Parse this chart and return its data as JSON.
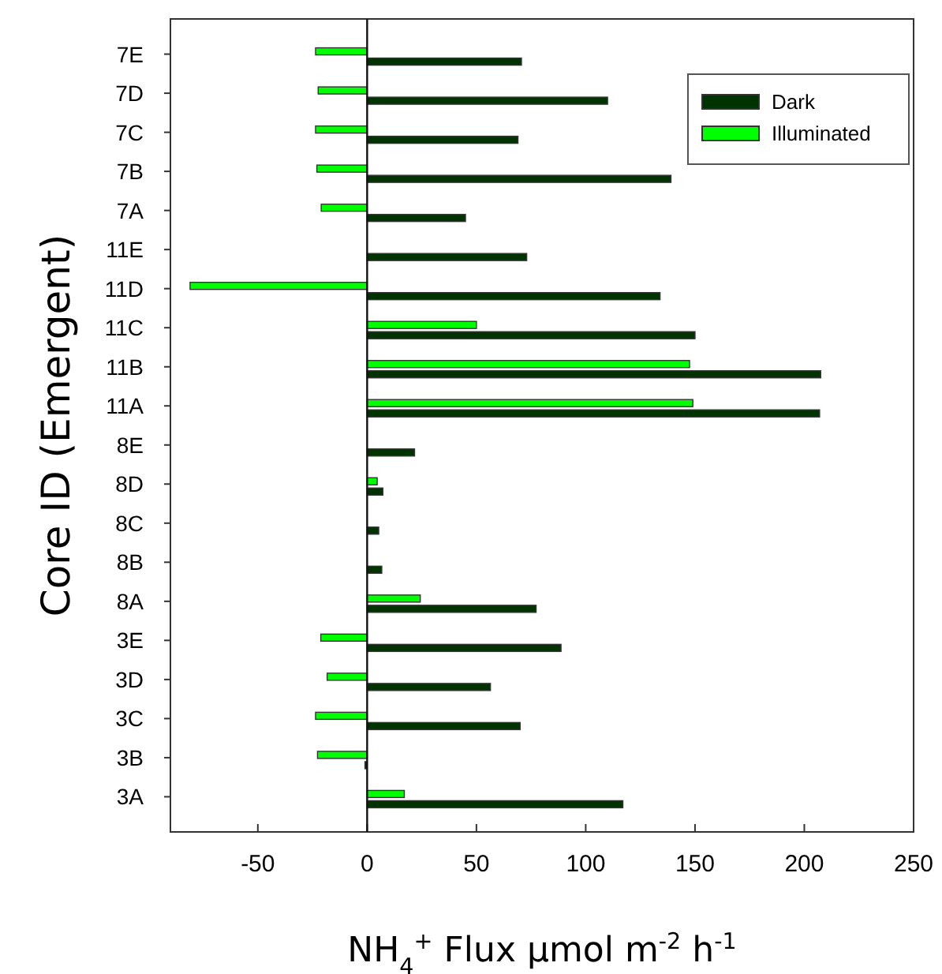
{
  "chart_data": {
    "type": "bar",
    "orientation": "horizontal",
    "xlabel": "NH$_{4}$$^{+}$ Flux  μmol m$^{-2}$ h$^{-1}$",
    "ylabel": "Core ID  (Emergent)",
    "categories": [
      "7E",
      "7D",
      "7C",
      "7B",
      "7A",
      "11E",
      "11D",
      "11C",
      "11B",
      "11A",
      "8E",
      "8D",
      "8C",
      "8B",
      "8A",
      "3E",
      "3D",
      "3C",
      "3B",
      "3A"
    ],
    "series": [
      {
        "name": "Dark",
        "color": "#003300",
        "values": [
          70.6,
          110,
          69,
          139,
          45,
          73,
          134,
          150,
          207.5,
          207,
          21.7,
          7.2,
          5.3,
          6.7,
          77.3,
          88.7,
          56.4,
          70,
          -1,
          117
        ]
      },
      {
        "name": "Illuminated",
        "color": "#00ff00",
        "values": [
          -23.6,
          -22.4,
          -23.6,
          -23,
          -21,
          null,
          -81,
          50,
          147.5,
          149,
          null,
          4.6,
          null,
          null,
          24.3,
          -21.2,
          -18.3,
          -23.6,
          -22.7,
          17
        ]
      }
    ],
    "xlim": [
      -90,
      250
    ],
    "xticks": [
      -50,
      0,
      50,
      100,
      150,
      200,
      250
    ],
    "legend": "top right"
  }
}
